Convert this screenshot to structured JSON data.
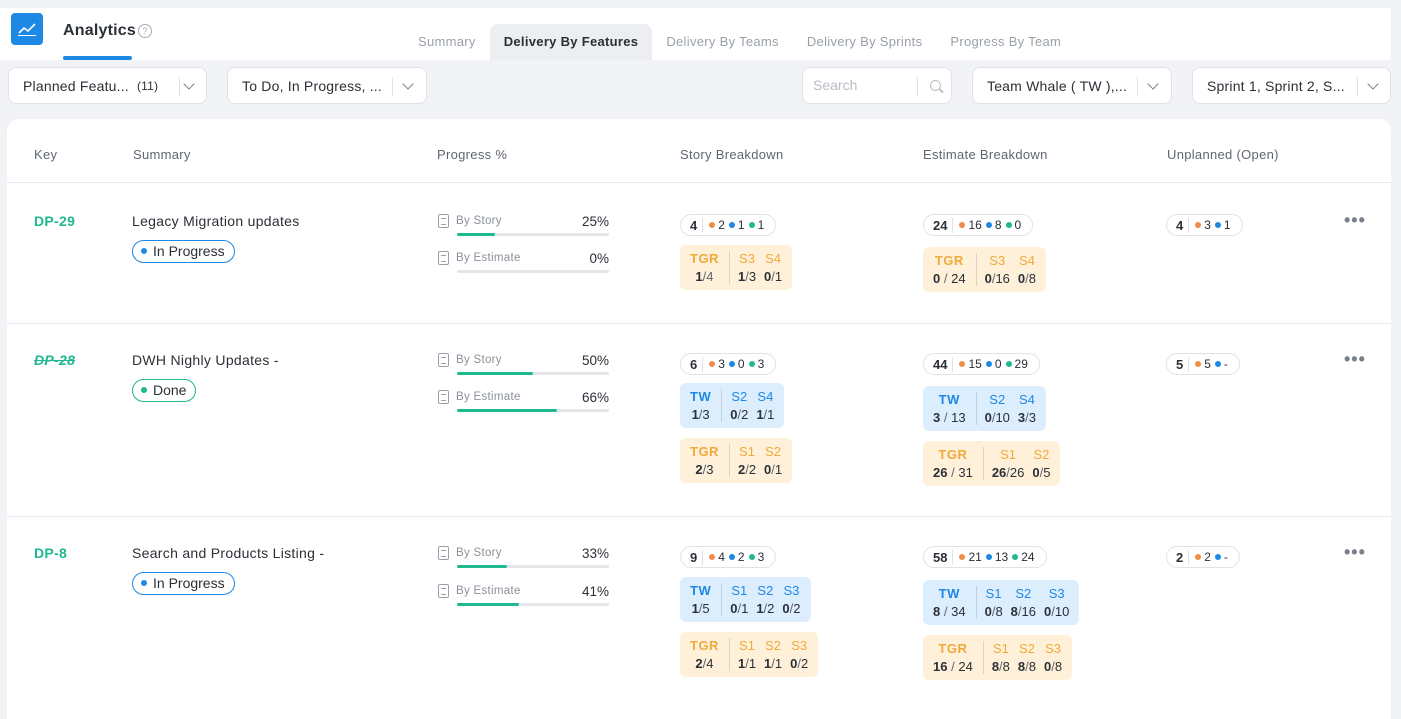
{
  "app": {
    "title": "Analytics",
    "help": "?"
  },
  "tabs": [
    "Summary",
    "Delivery By Features",
    "Delivery By Teams",
    "Delivery By Sprints",
    "Progress By Team"
  ],
  "active_tab": "Delivery By Features",
  "filters": {
    "features": {
      "label": "Planned Featu...",
      "count": "(11)"
    },
    "status": {
      "label": "To Do, In Progress, ..."
    },
    "search": {
      "placeholder": "Search",
      "value": ""
    },
    "team": {
      "label": "Team Whale ( TW ),..."
    },
    "sprint": {
      "label": "Sprint 1, Sprint 2, S..."
    }
  },
  "columns": {
    "key": "Key",
    "summary": "Summary",
    "progress": "Progress %",
    "story": "Story Breakdown",
    "estimate": "Estimate Breakdown",
    "unplanned": "Unplanned (Open)"
  },
  "colors": {
    "orange": "#f08c4a",
    "blue": "#1e88e5",
    "green": "#1fb890",
    "accent": "#1e88e5"
  },
  "rows": [
    {
      "key": "DP-29",
      "summary": "Legacy Migration updates",
      "status": "In Progress",
      "by_story_label": "By Story",
      "by_story_pct": "25%",
      "by_story_value": 25,
      "by_estimate_label": "By Estimate",
      "by_estimate_pct": "0%",
      "by_estimate_value": 0,
      "story_pill": {
        "total": "4",
        "orange": "2",
        "blue": "1",
        "green": "1"
      },
      "story_tgr": {
        "team": "TGR",
        "a": "1",
        "b": "4",
        "s1": "S3",
        "s1a": "1",
        "s1b": "3",
        "s2": "S4",
        "s2a": "0",
        "s2b": "1"
      },
      "est_pill": {
        "total": "24",
        "orange": "16",
        "blue": "8",
        "green": "0"
      },
      "est_tgr": {
        "team": "TGR",
        "a": "0",
        "b": "24",
        "s1": "S3",
        "s1a": "0",
        "s1b": "16",
        "s2": "S4",
        "s2a": "0",
        "s2b": "8"
      },
      "unplanned": {
        "total": "4",
        "orange": "3",
        "blue": "1"
      }
    },
    {
      "key": "DP-28",
      "summary": "DWH Nighly Updates -",
      "status": "Done",
      "by_story_label": "By Story",
      "by_story_pct": "50%",
      "by_story_value": 50,
      "by_estimate_label": "By Estimate",
      "by_estimate_pct": "66%",
      "by_estimate_value": 66,
      "story_pill": {
        "total": "6",
        "orange": "3",
        "blue": "0",
        "green": "3"
      },
      "story_tw": {
        "team": "TW",
        "a": "1",
        "b": "3",
        "s1": "S2",
        "s1a": "0",
        "s1b": "2",
        "s2": "S4",
        "s2a": "1",
        "s2b": "1"
      },
      "story_tgr": {
        "team": "TGR",
        "a": "2",
        "b": "3",
        "s1": "S1",
        "s1a": "2",
        "s1b": "2",
        "s2": "S2",
        "s2a": "0",
        "s2b": "1"
      },
      "est_pill": {
        "total": "44",
        "orange": "15",
        "blue": "0",
        "green": "29"
      },
      "est_tw": {
        "team": "TW",
        "a": "3",
        "b": "13",
        "s1": "S2",
        "s1a": "0",
        "s1b": "10",
        "s2": "S4",
        "s2a": "3",
        "s2b": "3"
      },
      "est_tgr": {
        "team": "TGR",
        "a": "26",
        "b": "31",
        "s1": "S1",
        "s1a": "26",
        "s1b": "26",
        "s2": "S2",
        "s2a": "0",
        "s2b": "5"
      },
      "unplanned": {
        "total": "5",
        "orange": "5",
        "blue": "-"
      }
    },
    {
      "key": "DP-8",
      "summary": "Search and Products Listing -",
      "status": "In Progress",
      "by_story_label": "By Story",
      "by_story_pct": "33%",
      "by_story_value": 33,
      "by_estimate_label": "By Estimate",
      "by_estimate_pct": "41%",
      "by_estimate_value": 41,
      "story_pill": {
        "total": "9",
        "orange": "4",
        "blue": "2",
        "green": "3"
      },
      "story_tw": {
        "team": "TW",
        "a": "1",
        "b": "5",
        "s1": "S1",
        "s1a": "0",
        "s1b": "1",
        "s2": "S2",
        "s2a": "1",
        "s2b": "2",
        "s3": "S3",
        "s3a": "0",
        "s3b": "2"
      },
      "story_tgr": {
        "team": "TGR",
        "a": "2",
        "b": "4",
        "s1": "S1",
        "s1a": "1",
        "s1b": "1",
        "s2": "S2",
        "s2a": "1",
        "s2b": "1",
        "s3": "S3",
        "s3a": "0",
        "s3b": "2"
      },
      "est_pill": {
        "total": "58",
        "orange": "21",
        "blue": "13",
        "green": "24"
      },
      "est_tw": {
        "team": "TW",
        "a": "8",
        "b": "34",
        "s1": "S1",
        "s1a": "0",
        "s1b": "8",
        "s2": "S2",
        "s2a": "8",
        "s2b": "16",
        "s3": "S3",
        "s3a": "0",
        "s3b": "10"
      },
      "est_tgr": {
        "team": "TGR",
        "a": "16",
        "b": "24",
        "s1": "S1",
        "s1a": "8",
        "s1b": "8",
        "s2": "S2",
        "s2a": "8",
        "s2b": "8",
        "s3": "S3",
        "s3a": "0",
        "s3b": "8"
      },
      "unplanned": {
        "total": "2",
        "orange": "2",
        "blue": "-"
      }
    }
  ]
}
